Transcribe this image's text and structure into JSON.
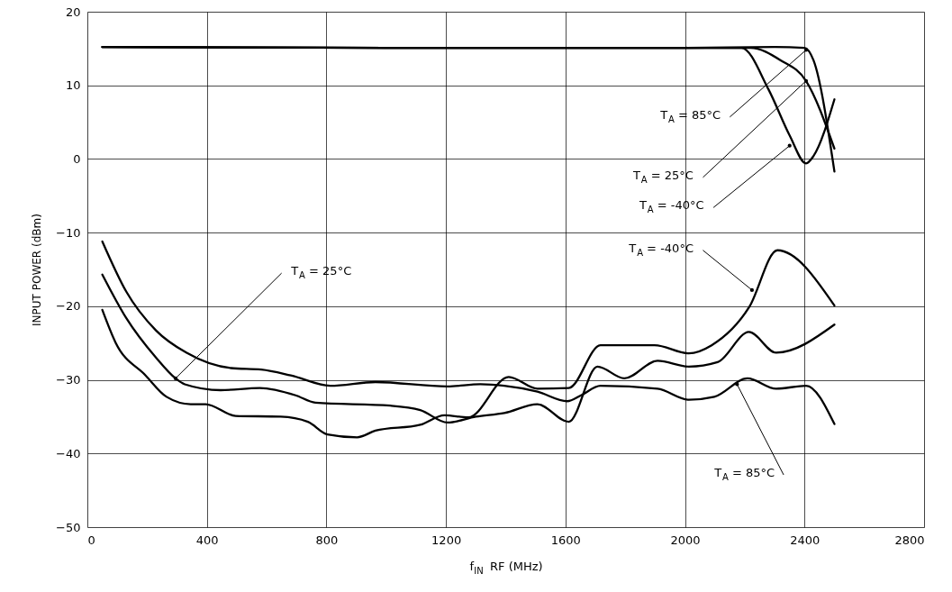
{
  "chart_data": {
    "type": "line",
    "xlabel": "f$_{IN}$ RF (MHz)",
    "ylabel": "INPUT POWER (dBm)",
    "xlim": [
      0,
      2800
    ],
    "xticks": [
      0,
      400,
      800,
      1200,
      1600,
      2000,
      2400,
      2800
    ],
    "ylim": [
      -50,
      20
    ],
    "yticks": [
      -50,
      -40,
      -30,
      -20,
      -10,
      0,
      10,
      20
    ],
    "grid": true,
    "line_style": "solid",
    "series": [
      {
        "color": "#000000",
        "x": [
          50,
          1000,
          2000,
          2300,
          2400,
          2430,
          2500
        ],
        "values": [
          15.2,
          15.1,
          15.1,
          15.2,
          15.1,
          13.4,
          -1.7
        ]
      },
      {
        "color": "#000000",
        "x": [
          50,
          1000,
          2000,
          2219,
          2320,
          2405,
          2500
        ],
        "values": [
          15.2,
          15.1,
          15.1,
          15.1,
          13.4,
          10.6,
          1.4
        ]
      },
      {
        "color": "#000000",
        "x": [
          50,
          1000,
          2000,
          2189,
          2280,
          2350,
          2405,
          2430,
          2500
        ],
        "values": [
          15.2,
          15.1,
          15.1,
          15.1,
          9.4,
          3.2,
          -0.6,
          0.4,
          8.1
        ]
      },
      {
        "color": "#000000",
        "x": [
          50,
          130,
          230,
          331,
          481,
          582,
          681,
          813,
          964,
          1205,
          1315,
          1395,
          1506,
          1606,
          1652,
          1717,
          1908,
          2013,
          2098,
          2209,
          2305,
          2405,
          2500
        ],
        "values": [
          -11.2,
          -18.0,
          -23.3,
          -26.3,
          -28.4,
          -28.6,
          -29.4,
          -30.8,
          -30.3,
          -30.9,
          -30.6,
          -30.8,
          -31.6,
          -32.9,
          -32.1,
          -30.8,
          -31.2,
          -32.7,
          -32.3,
          -29.8,
          -31.2,
          -30.8,
          -36
        ]
      },
      {
        "color": "#000000",
        "x": [
          50,
          130,
          230,
          295,
          326,
          446,
          577,
          697,
          763,
          1014,
          1114,
          1205,
          1300,
          1395,
          1506,
          1611,
          1707,
          1797,
          1908,
          2013,
          2109,
          2214,
          2305,
          2500
        ],
        "values": [
          -15.7,
          -21.6,
          -27.0,
          -29.8,
          -30.6,
          -31.4,
          -31.1,
          -32.1,
          -33.1,
          -33.5,
          -34.1,
          -35.8,
          -35.0,
          -34.5,
          -33.3,
          -35.7,
          -28.2,
          -29.8,
          -27.4,
          -28.2,
          -27.6,
          -23.5,
          -26.3,
          -22.5
        ]
      },
      {
        "color": "#000000",
        "x": [
          50,
          94,
          195,
          265,
          346,
          396,
          496,
          647,
          738,
          803,
          903,
          964,
          1114,
          1195,
          1275,
          1410,
          1506,
          1611,
          1717,
          1898,
          2013,
          2089,
          2215,
          2309,
          2500
        ],
        "values": [
          -20.5,
          -24.9,
          -29.4,
          -32.3,
          -33.3,
          -33.3,
          -34.9,
          -35.0,
          -35.7,
          -37.4,
          -37.8,
          -36.9,
          -36.1,
          -34.8,
          -35.1,
          -29.6,
          -31.2,
          -31.1,
          -25.3,
          -25.3,
          -26.4,
          -25.3,
          -20.1,
          -12.4,
          -19.9
        ]
      }
    ],
    "annotations": [
      {
        "text": "T$_{A}$ = 85°C",
        "x": 2405,
        "y": 14.8
      },
      {
        "text": "T$_{A}$ = 25°C",
        "x": 2405,
        "y": 10.6
      },
      {
        "text": "T$_{A}$ = -40°C",
        "x": 2350,
        "y": 1.8
      },
      {
        "text": "T$_{A}$ = -40°C",
        "x": 2224,
        "y": -17.8
      },
      {
        "text": "T$_{A}$ = 25°C",
        "x": 295,
        "y": -29.8
      },
      {
        "text": "T$_{A}$ = 85°C",
        "x": 2174,
        "y": -30.6
      }
    ]
  }
}
